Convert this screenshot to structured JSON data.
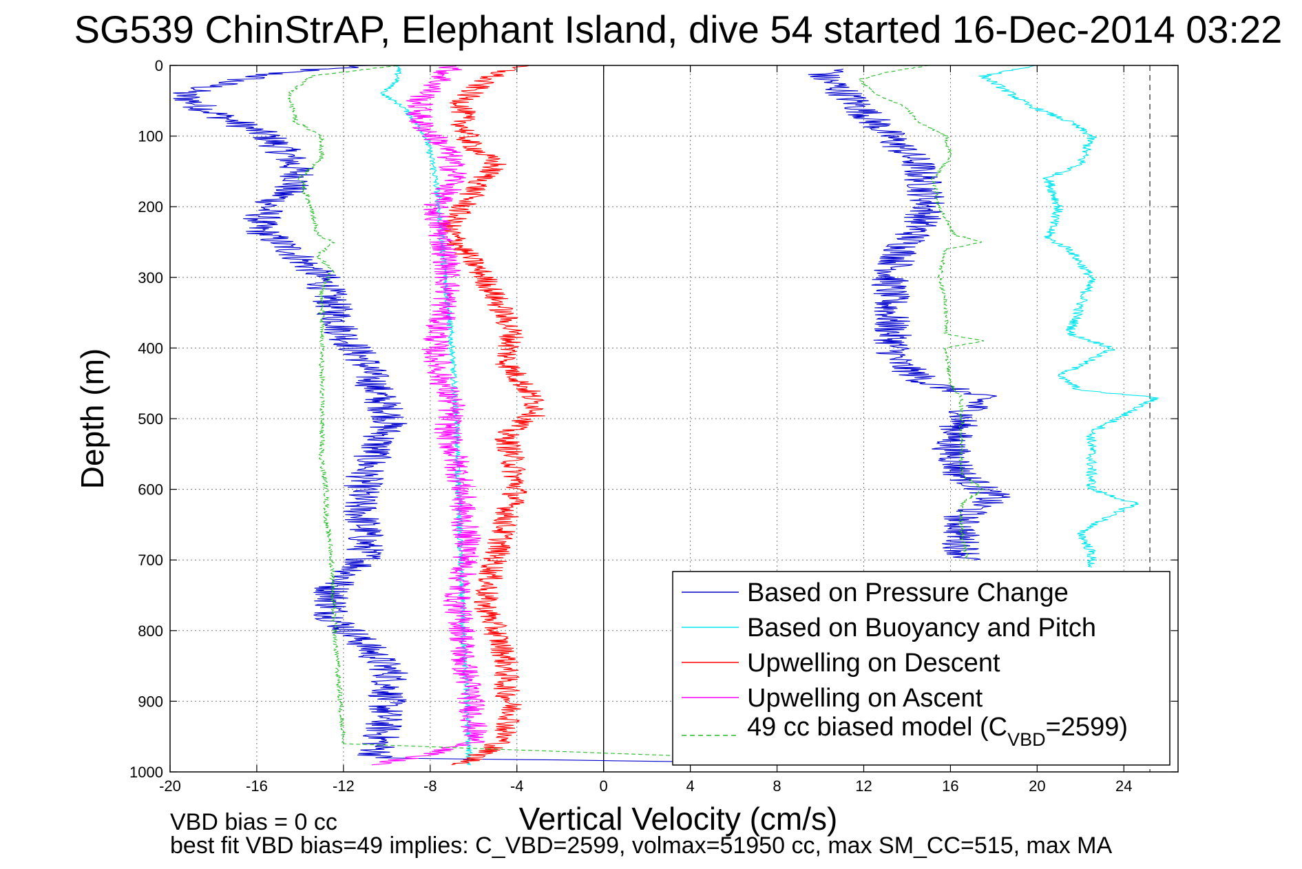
{
  "chart_data": {
    "type": "line",
    "title": "SG539 ChinStrAP, Elephant Island, dive 54 started 16-Dec-2014 03:22",
    "xlabel": "Vertical Velocity (cm/s)",
    "ylabel": "Depth (m)",
    "xlim": [
      -20,
      26.5
    ],
    "ylim": [
      0,
      1000
    ],
    "y_reversed": true,
    "grid": true,
    "x_ticks": [
      -20,
      -16,
      -12,
      -8,
      -4,
      0,
      4,
      8,
      12,
      16,
      20,
      24
    ],
    "y_ticks": [
      0,
      100,
      200,
      300,
      400,
      500,
      600,
      700,
      800,
      900,
      1000
    ],
    "reference_lines": [
      {
        "orientation": "vertical",
        "x": 0,
        "style": "solid",
        "color": "#000000"
      },
      {
        "orientation": "vertical",
        "x": 25.2,
        "style": "dashed",
        "color": "#444444"
      }
    ],
    "notes": [
      "VBD bias = 0 cc",
      "best fit VBD bias=49 implies: C_VBD=2599, volmax=51950 cc, max SM_CC=515, max MA"
    ],
    "legend": {
      "placement": "lower-right",
      "entries": [
        {
          "label": "Based on Pressure Change",
          "color": "#0000cc",
          "style": "solid"
        },
        {
          "label": "Based on Buoyancy and Pitch",
          "color": "#00e5ee",
          "style": "solid"
        },
        {
          "label": "Upwelling on Descent",
          "color": "#ff0000",
          "style": "solid"
        },
        {
          "label": "Upwelling on Ascent",
          "color": "#ff00ff",
          "style": "solid"
        },
        {
          "label": "49 cc biased model (C",
          "sub": "VBD",
          "suffix": "=2599)",
          "color": "#22bb22",
          "style": "dashed"
        }
      ]
    },
    "series": [
      {
        "color": "#0000cc",
        "style": "solid",
        "noise": 0.9,
        "depth": [
          0,
          10,
          25,
          40,
          60,
          80,
          100,
          130,
          160,
          200,
          230,
          260,
          300,
          340,
          380,
          420,
          460,
          500,
          540,
          580,
          620,
          660,
          700,
          740,
          780,
          820,
          860,
          900,
          940,
          980,
          990
        ],
        "values": [
          -11,
          -15,
          -17.5,
          -19.5,
          -18.5,
          -17,
          -15.5,
          -14.5,
          -14,
          -15.5,
          -16,
          -14.5,
          -13,
          -12.5,
          -12,
          -11,
          -10.5,
          -9.8,
          -10.5,
          -11,
          -11.3,
          -11,
          -11,
          -12.5,
          -12.5,
          -11,
          -9.8,
          -10,
          -10.2,
          -10.5,
          15
        ]
      },
      {
        "color": "#0000cc",
        "style": "solid",
        "noise": 0.9,
        "depth": [
          5,
          15,
          30,
          50,
          80,
          110,
          140,
          170,
          200,
          230,
          260,
          300,
          340,
          380,
          420,
          450,
          470,
          500,
          540,
          580,
          610,
          640,
          680,
          700
        ],
        "values": [
          11,
          10,
          10.8,
          11.5,
          12.5,
          13.5,
          14.5,
          14.8,
          15,
          14.5,
          13.8,
          13.2,
          13.2,
          13.3,
          13.5,
          15,
          17.5,
          16.5,
          16,
          16.5,
          18,
          16.5,
          16.5,
          16.8
        ]
      },
      {
        "color": "#00e5ee",
        "style": "solid",
        "noise": 0.15,
        "depth": [
          0,
          20,
          40,
          60,
          100,
          150,
          200,
          300,
          400,
          500,
          600,
          700,
          800,
          900,
          990
        ],
        "values": [
          -9.5,
          -9.5,
          -10.2,
          -9.2,
          -8.2,
          -7.8,
          -7.6,
          -7.3,
          -7.0,
          -6.8,
          -6.7,
          -6.6,
          -6.5,
          -6.3,
          -6.2
        ]
      },
      {
        "color": "#00e5ee",
        "style": "solid",
        "noise": 0.25,
        "depth": [
          0,
          15,
          30,
          55,
          80,
          100,
          140,
          160,
          200,
          245,
          260,
          300,
          380,
          400,
          440,
          460,
          470,
          520,
          560,
          600,
          620,
          660,
          690,
          710
        ],
        "values": [
          20,
          17.5,
          18.3,
          19.5,
          21.5,
          22.5,
          22,
          20.5,
          21,
          20.5,
          21.5,
          22.5,
          21.5,
          23.5,
          21,
          22,
          25.5,
          22.5,
          22.5,
          22.5,
          24.5,
          22,
          22.5,
          22.5
        ]
      },
      {
        "color": "#ff0000",
        "style": "solid",
        "noise": 0.6,
        "depth": [
          0,
          20,
          50,
          80,
          110,
          140,
          170,
          200,
          230,
          260,
          300,
          340,
          380,
          420,
          460,
          490,
          520,
          560,
          600,
          640,
          680,
          720,
          760,
          800,
          840,
          880,
          920,
          960,
          990
        ],
        "values": [
          -4,
          -5.5,
          -6.5,
          -6.5,
          -6.2,
          -5,
          -5.8,
          -6.5,
          -7.2,
          -6.5,
          -5.5,
          -4.8,
          -4.2,
          -4.5,
          -3.5,
          -3,
          -4.5,
          -4.2,
          -4,
          -4.5,
          -4.8,
          -5.2,
          -5.5,
          -5,
          -4.5,
          -4.5,
          -4.2,
          -4.8,
          -6.5
        ]
      },
      {
        "color": "#ff00ff",
        "style": "solid",
        "noise": 0.65,
        "depth": [
          0,
          20,
          50,
          80,
          120,
          160,
          200,
          240,
          280,
          320,
          360,
          400,
          440,
          480,
          520,
          560,
          600,
          640,
          680,
          720,
          760,
          800,
          840,
          880,
          920,
          960,
          990
        ],
        "values": [
          -7,
          -7.5,
          -8.5,
          -8.5,
          -7.2,
          -6.8,
          -7.8,
          -7.5,
          -7.2,
          -7.2,
          -7.5,
          -7.8,
          -7.5,
          -7,
          -7.2,
          -6.8,
          -6.5,
          -6.5,
          -6.2,
          -6.5,
          -6.8,
          -6.5,
          -6.5,
          -6.2,
          -6,
          -6,
          -10.5
        ]
      },
      {
        "color": "#22bb22",
        "style": "dashed",
        "noise": 0.12,
        "depth": [
          0,
          15,
          40,
          80,
          100,
          130,
          160,
          200,
          240,
          250,
          270,
          290,
          320,
          360,
          400,
          440,
          480,
          520,
          560,
          600,
          640,
          680,
          720,
          760,
          800,
          840,
          880,
          920,
          960,
          990
        ],
        "values": [
          -9.5,
          -13.5,
          -14.5,
          -14.2,
          -13,
          -13,
          -14,
          -13.5,
          -13.2,
          -12.5,
          -13.2,
          -12.5,
          -13,
          -13,
          -13,
          -13,
          -13,
          -13,
          -13,
          -12.8,
          -12.8,
          -12.6,
          -12.5,
          -12.5,
          -12.4,
          -12.3,
          -12.2,
          -12.1,
          -12,
          15
        ]
      },
      {
        "color": "#22bb22",
        "style": "dashed",
        "noise": 0.1,
        "depth": [
          0,
          10,
          20,
          40,
          60,
          80,
          100,
          130,
          160,
          200,
          240,
          250,
          260,
          300,
          340,
          380,
          390,
          400,
          450,
          470,
          500,
          540,
          580,
          600,
          620,
          660,
          700
        ],
        "values": [
          15,
          13,
          11.8,
          12.5,
          14,
          14.5,
          15.8,
          16,
          15.2,
          15.5,
          16.2,
          17.5,
          15.8,
          15.5,
          15.8,
          15.8,
          17.5,
          15.8,
          16,
          16.5,
          16.5,
          16.5,
          16.5,
          17.5,
          16.5,
          16.5,
          16.8
        ]
      }
    ]
  }
}
